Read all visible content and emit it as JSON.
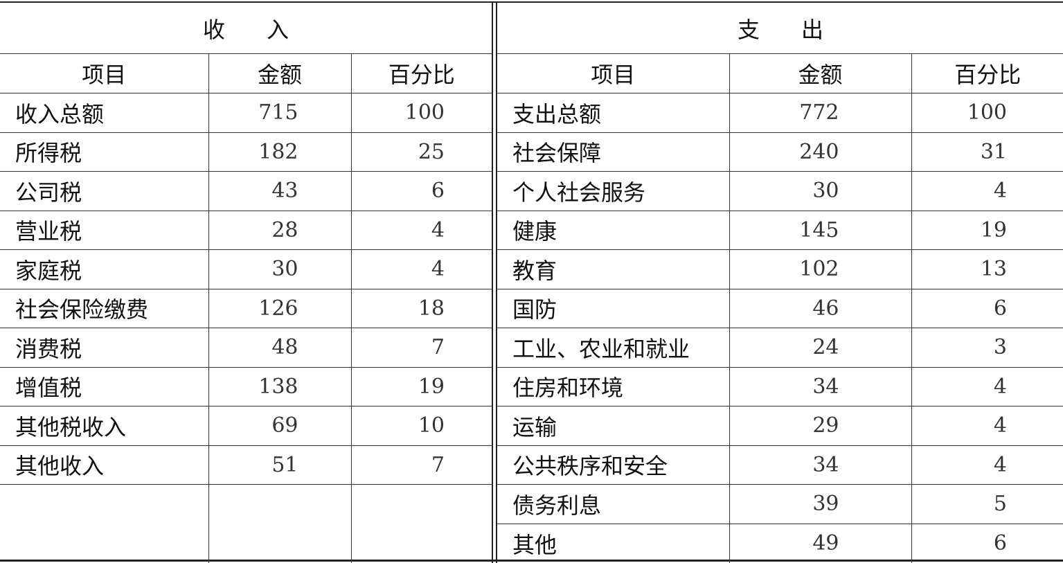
{
  "income": {
    "title": "收入",
    "headers": [
      "项目",
      "金额",
      "百分比"
    ],
    "rows": [
      {
        "item": "收入总额",
        "amount": "715",
        "percent": "100"
      },
      {
        "item": "所得税",
        "amount": "182",
        "percent": "25"
      },
      {
        "item": "公司税",
        "amount": "43",
        "percent": "6"
      },
      {
        "item": "营业税",
        "amount": "28",
        "percent": "4"
      },
      {
        "item": "家庭税",
        "amount": "30",
        "percent": "4"
      },
      {
        "item": "社会保险缴费",
        "amount": "126",
        "percent": "18"
      },
      {
        "item": "消费税",
        "amount": "48",
        "percent": "7"
      },
      {
        "item": "增值税",
        "amount": "138",
        "percent": "19"
      },
      {
        "item": "其他税收入",
        "amount": "69",
        "percent": "10"
      },
      {
        "item": "其他收入",
        "amount": "51",
        "percent": "7"
      }
    ]
  },
  "expenditure": {
    "title": "支出",
    "headers": [
      "项目",
      "金额",
      "百分比"
    ],
    "rows": [
      {
        "item": "支出总额",
        "amount": "772",
        "percent": "100"
      },
      {
        "item": "社会保障",
        "amount": "240",
        "percent": "31"
      },
      {
        "item": "个人社会服务",
        "amount": "30",
        "percent": "4"
      },
      {
        "item": "健康",
        "amount": "145",
        "percent": "19"
      },
      {
        "item": "教育",
        "amount": "102",
        "percent": "13"
      },
      {
        "item": "国防",
        "amount": "46",
        "percent": "6"
      },
      {
        "item": "工业、农业和就业",
        "amount": "24",
        "percent": "3"
      },
      {
        "item": "住房和环境",
        "amount": "34",
        "percent": "4"
      },
      {
        "item": "运输",
        "amount": "29",
        "percent": "4"
      },
      {
        "item": "公共秩序和安全",
        "amount": "34",
        "percent": "4"
      },
      {
        "item": "债务利息",
        "amount": "39",
        "percent": "5"
      },
      {
        "item": "其他",
        "amount": "49",
        "percent": "6"
      }
    ]
  }
}
